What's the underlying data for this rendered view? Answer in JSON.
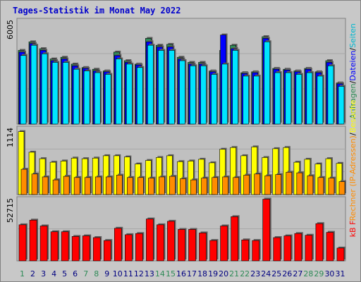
{
  "title": "Tages-Statistik im Monat May 2022",
  "colors": {
    "background": "#cccccc",
    "plot_background": "#c0c0c0",
    "hits": "#2e8b57",
    "files": "#0000ff",
    "pages": "#00e5ff",
    "visits": "#ffff00",
    "sites": "#ff8c00",
    "kbytes": "#ff0000",
    "weekend_day": "#2e8b57",
    "weekday": "#000080"
  },
  "chart_data": [
    {
      "type": "bar",
      "name": "hits_files_pages",
      "y_max_label": "6005",
      "ylim": [
        0,
        6005
      ],
      "legend": [
        "Anfragen",
        "/",
        "Dateien",
        "/",
        "Seiten"
      ],
      "categories": [
        "1",
        "2",
        "3",
        "4",
        "5",
        "6",
        "7",
        "8",
        "9",
        "10",
        "11",
        "12",
        "13",
        "14",
        "15",
        "16",
        "17",
        "18",
        "19",
        "20",
        "21",
        "22",
        "23",
        "24",
        "25",
        "26",
        "27",
        "28",
        "29",
        "30",
        "31"
      ],
      "series": [
        {
          "name": "Anfragen",
          "values": [
            4300,
            4800,
            4400,
            3800,
            3900,
            3500,
            3300,
            3200,
            3100,
            4200,
            3700,
            3500,
            5000,
            4600,
            4650,
            3900,
            3600,
            3600,
            3100,
            4300,
            4600,
            3000,
            3050,
            5100,
            3250,
            3200,
            3100,
            3250,
            3050,
            3700,
            2400
          ]
        },
        {
          "name": "Dateien",
          "values": [
            4200,
            4700,
            4300,
            3700,
            3800,
            3400,
            3250,
            3100,
            3050,
            4000,
            3600,
            3450,
            4800,
            4500,
            4500,
            3800,
            3500,
            3500,
            3050,
            5200,
            4400,
            2950,
            3000,
            5000,
            3200,
            3150,
            3050,
            3200,
            3000,
            3600,
            2350
          ]
        },
        {
          "name": "Seiten",
          "values": [
            4000,
            4600,
            4100,
            3600,
            3600,
            3200,
            3100,
            3000,
            2900,
            3800,
            3500,
            3300,
            4600,
            4300,
            4300,
            3700,
            3400,
            3400,
            2900,
            3500,
            4300,
            2800,
            2800,
            4800,
            3000,
            3000,
            2900,
            3000,
            2800,
            3400,
            2200
          ]
        }
      ]
    },
    {
      "type": "bar",
      "name": "sites_visits",
      "y_max_label": "1114",
      "ylim": [
        0,
        1114
      ],
      "legend": [
        "Rechner (IP-Adressen)",
        "/",
        "Besuche"
      ],
      "categories": [
        "1",
        "2",
        "3",
        "4",
        "5",
        "6",
        "7",
        "8",
        "9",
        "10",
        "11",
        "12",
        "13",
        "14",
        "15",
        "16",
        "17",
        "18",
        "19",
        "20",
        "21",
        "22",
        "23",
        "24",
        "25",
        "26",
        "27",
        "28",
        "29",
        "30",
        "31"
      ],
      "series": [
        {
          "name": "Besuche",
          "values": [
            1070,
            720,
            610,
            550,
            570,
            620,
            610,
            620,
            660,
            660,
            640,
            520,
            580,
            630,
            660,
            560,
            570,
            600,
            540,
            770,
            800,
            660,
            810,
            630,
            780,
            800,
            550,
            600,
            520,
            610,
            530
          ]
        },
        {
          "name": "Rechner (IP-Adressen)",
          "values": [
            430,
            350,
            300,
            250,
            310,
            290,
            290,
            300,
            300,
            330,
            290,
            290,
            280,
            300,
            310,
            270,
            250,
            280,
            290,
            300,
            290,
            330,
            350,
            320,
            340,
            380,
            370,
            320,
            290,
            280,
            220
          ]
        }
      ]
    },
    {
      "type": "bar",
      "name": "kbytes",
      "y_max_label": "52715",
      "ylim": [
        0,
        52715
      ],
      "legend": [
        "kB F"
      ],
      "categories": [
        "1",
        "2",
        "3",
        "4",
        "5",
        "6",
        "7",
        "8",
        "9",
        "10",
        "11",
        "12",
        "13",
        "14",
        "15",
        "16",
        "17",
        "18",
        "19",
        "20",
        "21",
        "22",
        "23",
        "24",
        "25",
        "26",
        "27",
        "28",
        "29",
        "30",
        "31"
      ],
      "series": [
        {
          "name": "kB F",
          "values": [
            31000,
            35000,
            30000,
            25000,
            25000,
            21000,
            21500,
            20000,
            17500,
            28000,
            22500,
            23500,
            36000,
            31000,
            34000,
            27000,
            27000,
            24000,
            17500,
            30000,
            38000,
            18000,
            17500,
            53000,
            20000,
            21500,
            23500,
            22000,
            32000,
            24500,
            11000
          ]
        }
      ]
    }
  ],
  "weekend_days": [
    "1",
    "7",
    "8",
    "14",
    "15",
    "21",
    "22",
    "28",
    "29"
  ]
}
